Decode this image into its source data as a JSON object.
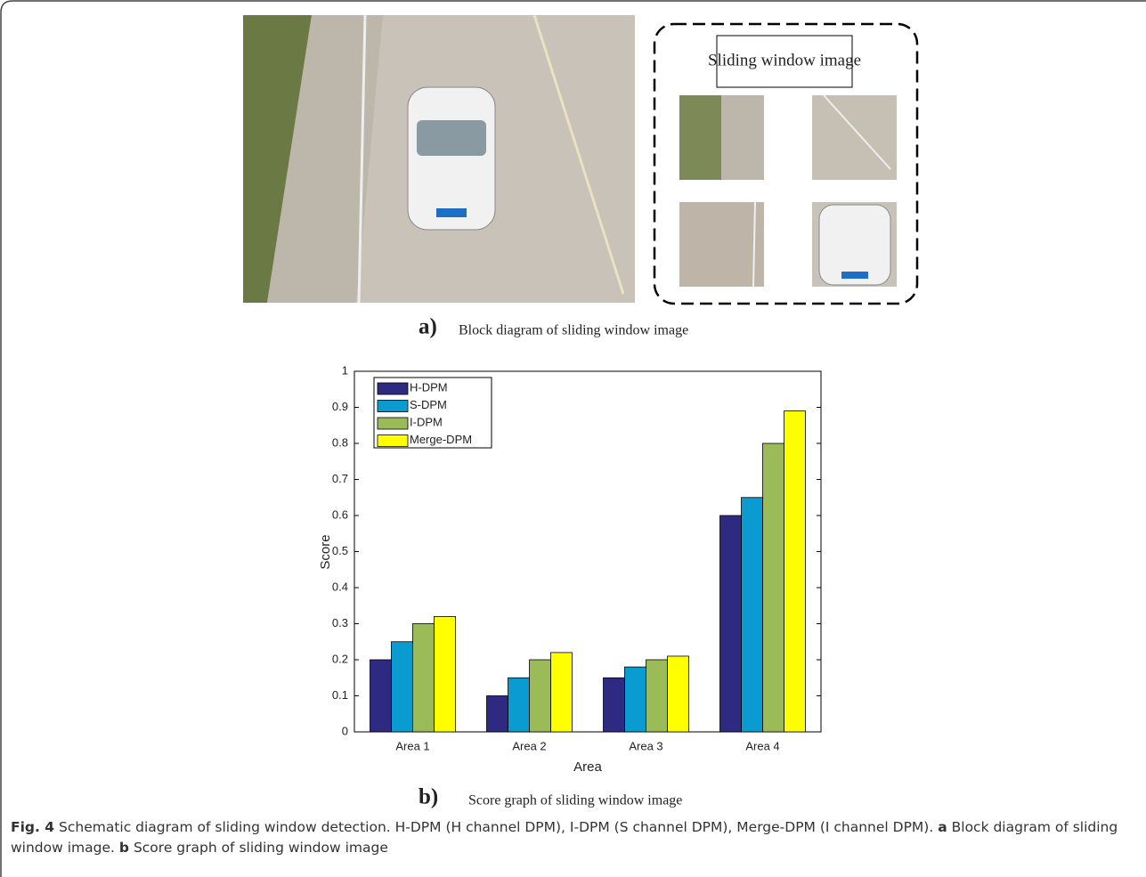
{
  "panel_a": {
    "window_title": "Sliding window image",
    "label": "a)",
    "text": "Block diagram of sliding window image"
  },
  "panel_b": {
    "label": "b)",
    "text": "Score graph of sliding window image"
  },
  "chart_data": {
    "type": "bar",
    "xlabel": "Area",
    "ylabel": "Score",
    "categories": [
      "Area 1",
      "Area 2",
      "Area 3",
      "Area 4"
    ],
    "series": [
      {
        "name": "H-DPM",
        "color": "#2e2a82",
        "values": [
          0.2,
          0.1,
          0.15,
          0.6
        ]
      },
      {
        "name": "S-DPM",
        "color": "#0a9bd0",
        "values": [
          0.25,
          0.15,
          0.18,
          0.65
        ]
      },
      {
        "name": "I-DPM",
        "color": "#9bbb59",
        "values": [
          0.3,
          0.2,
          0.2,
          0.8
        ]
      },
      {
        "name": "Merge-DPM",
        "color": "#ffff00",
        "values": [
          0.32,
          0.22,
          0.21,
          0.89
        ]
      }
    ],
    "ylim": [
      0,
      1
    ],
    "yticks": [
      0,
      0.1,
      0.2,
      0.3,
      0.4,
      0.5,
      0.6,
      0.7,
      0.8,
      0.9,
      1
    ],
    "legend": "top-left"
  },
  "caption": {
    "fig": "Fig. 4",
    "text": "Schematic diagram of sliding window detection. H-DPM (H channel DPM), I-DPM (S channel DPM), Merge-DPM (I channel DPM).",
    "a": "a",
    "a_text": "Block diagram of sliding window image.",
    "b": "b",
    "b_text": "Score graph of sliding window image"
  }
}
